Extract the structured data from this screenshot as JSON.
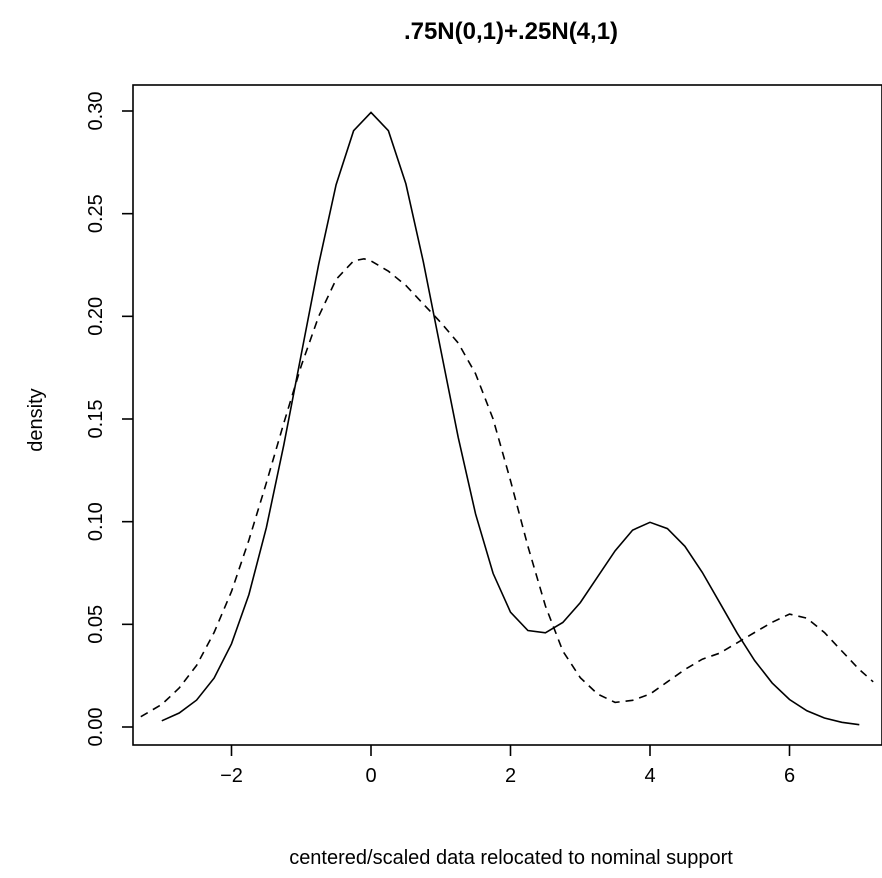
{
  "chart_data": {
    "type": "line",
    "title": ".75N(0,1)+.25N(4,1)",
    "xlabel": "centered/scaled data relocated to nominal support",
    "ylabel": "density",
    "xlim": [
      -3.4,
      7.2
    ],
    "ylim": [
      0,
      0.3
    ],
    "x_ticks": [
      -2,
      0,
      2,
      4,
      6
    ],
    "x_tick_labels": [
      "−2",
      "0",
      "2",
      "4",
      "6"
    ],
    "y_ticks": [
      0.0,
      0.05,
      0.1,
      0.15,
      0.2,
      0.25,
      0.3
    ],
    "y_tick_labels": [
      "0.00",
      "0.05",
      "0.10",
      "0.15",
      "0.20",
      "0.25",
      "0.30"
    ],
    "grid": false,
    "legend": "none",
    "series": [
      {
        "style": "solid",
        "x": [
          -3.0,
          -2.75,
          -2.5,
          -2.25,
          -2.0,
          -1.75,
          -1.5,
          -1.25,
          -1.0,
          -0.75,
          -0.5,
          -0.25,
          0.0,
          0.25,
          0.5,
          0.75,
          1.0,
          1.25,
          1.5,
          1.75,
          2.0,
          2.25,
          2.5,
          2.75,
          3.0,
          3.25,
          3.5,
          3.75,
          4.0,
          4.25,
          4.5,
          4.75,
          5.0,
          5.25,
          5.5,
          5.75,
          6.0,
          6.25,
          6.5,
          6.75,
          7.0
        ],
        "y": [
          0.003,
          0.0068,
          0.0131,
          0.0238,
          0.0405,
          0.0645,
          0.0972,
          0.1374,
          0.1816,
          0.2254,
          0.2641,
          0.2904,
          0.2993,
          0.2904,
          0.2645,
          0.2266,
          0.1836,
          0.1411,
          0.1037,
          0.0748,
          0.0559,
          0.047,
          0.0459,
          0.0509,
          0.0606,
          0.0732,
          0.0858,
          0.0959,
          0.0997,
          0.0966,
          0.088,
          0.0753,
          0.0605,
          0.0457,
          0.0324,
          0.0215,
          0.0134,
          0.0079,
          0.0044,
          0.0023,
          0.0011
        ]
      },
      {
        "style": "dashed",
        "x": [
          -3.3,
          -3.0,
          -2.75,
          -2.5,
          -2.25,
          -2.0,
          -1.75,
          -1.5,
          -1.25,
          -1.0,
          -0.75,
          -0.5,
          -0.25,
          -0.1,
          0.0,
          0.25,
          0.5,
          0.75,
          1.0,
          1.25,
          1.5,
          1.75,
          2.0,
          2.25,
          2.5,
          2.75,
          3.0,
          3.25,
          3.5,
          3.75,
          4.0,
          4.25,
          4.5,
          4.75,
          5.0,
          5.25,
          5.5,
          5.75,
          6.0,
          6.25,
          6.5,
          6.75,
          7.0,
          7.2
        ],
        "y": [
          0.005,
          0.011,
          0.019,
          0.03,
          0.046,
          0.066,
          0.091,
          0.119,
          0.148,
          0.176,
          0.2,
          0.218,
          0.227,
          0.228,
          0.227,
          0.222,
          0.215,
          0.206,
          0.197,
          0.187,
          0.172,
          0.15,
          0.12,
          0.088,
          0.059,
          0.037,
          0.024,
          0.016,
          0.012,
          0.013,
          0.016,
          0.022,
          0.028,
          0.033,
          0.036,
          0.041,
          0.046,
          0.051,
          0.055,
          0.053,
          0.046,
          0.037,
          0.028,
          0.022
        ]
      }
    ]
  }
}
